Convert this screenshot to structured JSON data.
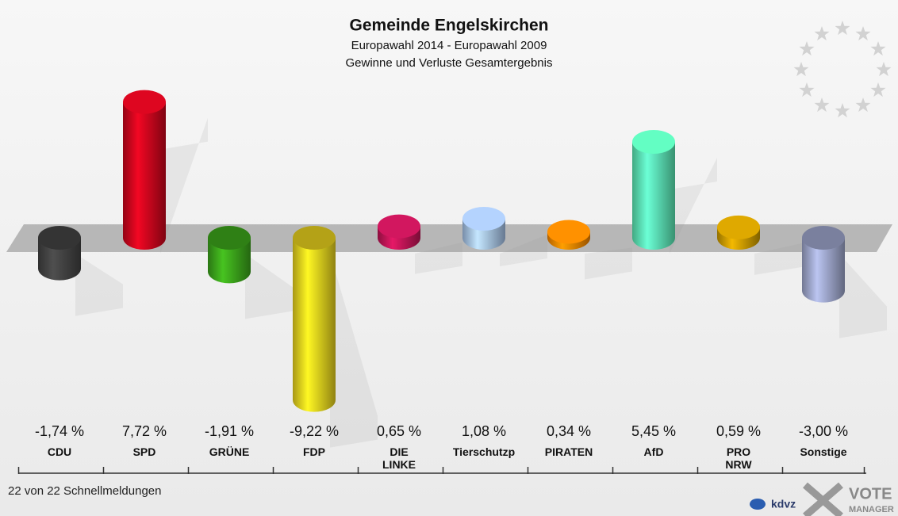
{
  "chart_data": {
    "type": "bar",
    "title": "Gemeinde Engelskirchen",
    "subtitle": [
      "Europawahl 2014 - Europawahl 2009",
      "Gewinne und Verluste Gesamtergebnis"
    ],
    "categories": [
      "CDU",
      "SPD",
      "GRÜNE",
      "FDP",
      "DIE LINKE",
      "Tierschutzp",
      "PIRATEN",
      "AfD",
      "PRO NRW",
      "Sonstige"
    ],
    "values": [
      -1.74,
      7.72,
      -1.91,
      -9.22,
      0.65,
      1.08,
      0.34,
      5.45,
      0.59,
      -3.0
    ],
    "value_labels": [
      "-1,74 %",
      "7,72 %",
      "-1,91 %",
      "-9,22 %",
      "0,65 %",
      "1,08 %",
      "0,34 %",
      "5,45 %",
      "0,59 %",
      "-3,00 %"
    ],
    "colors": [
      "#454545",
      "#d3061e",
      "#3eaa1c",
      "#f0d81e",
      "#c8165a",
      "#abc9f2",
      "#ff8a00",
      "#5ef2ba",
      "#d4a100",
      "#a3abd2"
    ],
    "footer": "22 von 22 Schnellmeldungen",
    "logos": [
      "kdvz",
      "VOTE",
      "MANAGER"
    ]
  }
}
